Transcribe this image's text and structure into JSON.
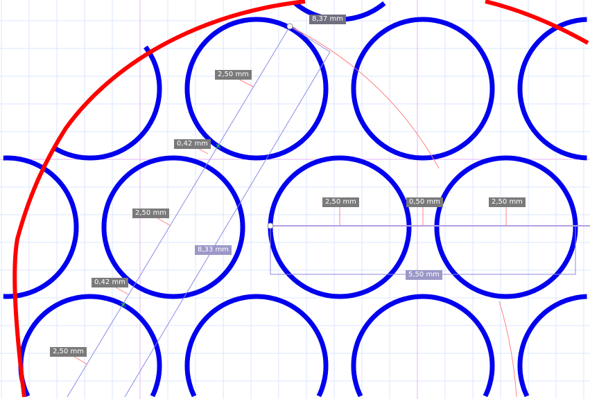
{
  "colors": {
    "holes": "#0000ee",
    "outline": "#ff0000",
    "grid": "#dbe6ff",
    "axis": "#e3b3f5",
    "construction": "#8c88e6",
    "arc": "#ff8080"
  },
  "dimensions": [
    {
      "text": "8,37 mm",
      "kind": "distance"
    },
    {
      "text": "2,50 mm",
      "kind": "radius"
    },
    {
      "text": "0,42 mm",
      "kind": "gap"
    },
    {
      "text": "2,50 mm",
      "kind": "radius"
    },
    {
      "text": "8,33 mm",
      "kind": "distance"
    },
    {
      "text": "0,42 mm",
      "kind": "gap"
    },
    {
      "text": "2,50 mm",
      "kind": "radius"
    },
    {
      "text": "2,50 mm",
      "kind": "radius"
    },
    {
      "text": "0,50 mm",
      "kind": "gap"
    },
    {
      "text": "2,50 mm",
      "kind": "radius"
    },
    {
      "text": "5,50 mm",
      "kind": "distance"
    }
  ]
}
